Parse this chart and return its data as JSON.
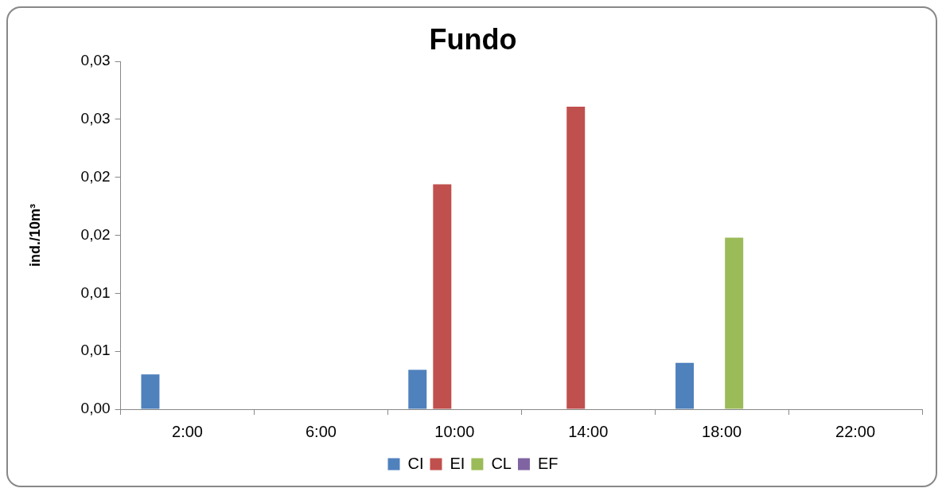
{
  "chart_data": {
    "type": "bar",
    "title": "Fundo",
    "ylabel": "ind./10m³",
    "categories": [
      "2:00",
      "6:00",
      "10:00",
      "14:00",
      "18:00",
      "22:00"
    ],
    "series": [
      {
        "name": "CI",
        "color": "#4f81bd",
        "values": [
          0.003,
          0,
          0.0034,
          0,
          0.004,
          0
        ]
      },
      {
        "name": "EI",
        "color": "#c0504d",
        "values": [
          0,
          0,
          0.0194,
          0.0261,
          0,
          0
        ]
      },
      {
        "name": "CL",
        "color": "#9bbb59",
        "values": [
          0,
          0,
          0,
          0,
          0.0148,
          0
        ]
      },
      {
        "name": "EF",
        "color": "#8064a2",
        "values": [
          0,
          0,
          0,
          0,
          0,
          0
        ]
      }
    ],
    "ylim": [
      0,
      0.03
    ],
    "yticks": [
      {
        "value": 0,
        "label": "0,00"
      },
      {
        "value": 0.005,
        "label": "0,01"
      },
      {
        "value": 0.01,
        "label": "0,01"
      },
      {
        "value": 0.015,
        "label": "0,02"
      },
      {
        "value": 0.02,
        "label": "0,02"
      },
      {
        "value": 0.025,
        "label": "0,03"
      },
      {
        "value": 0.03,
        "label": "0,03"
      }
    ],
    "legend": "bottom"
  }
}
